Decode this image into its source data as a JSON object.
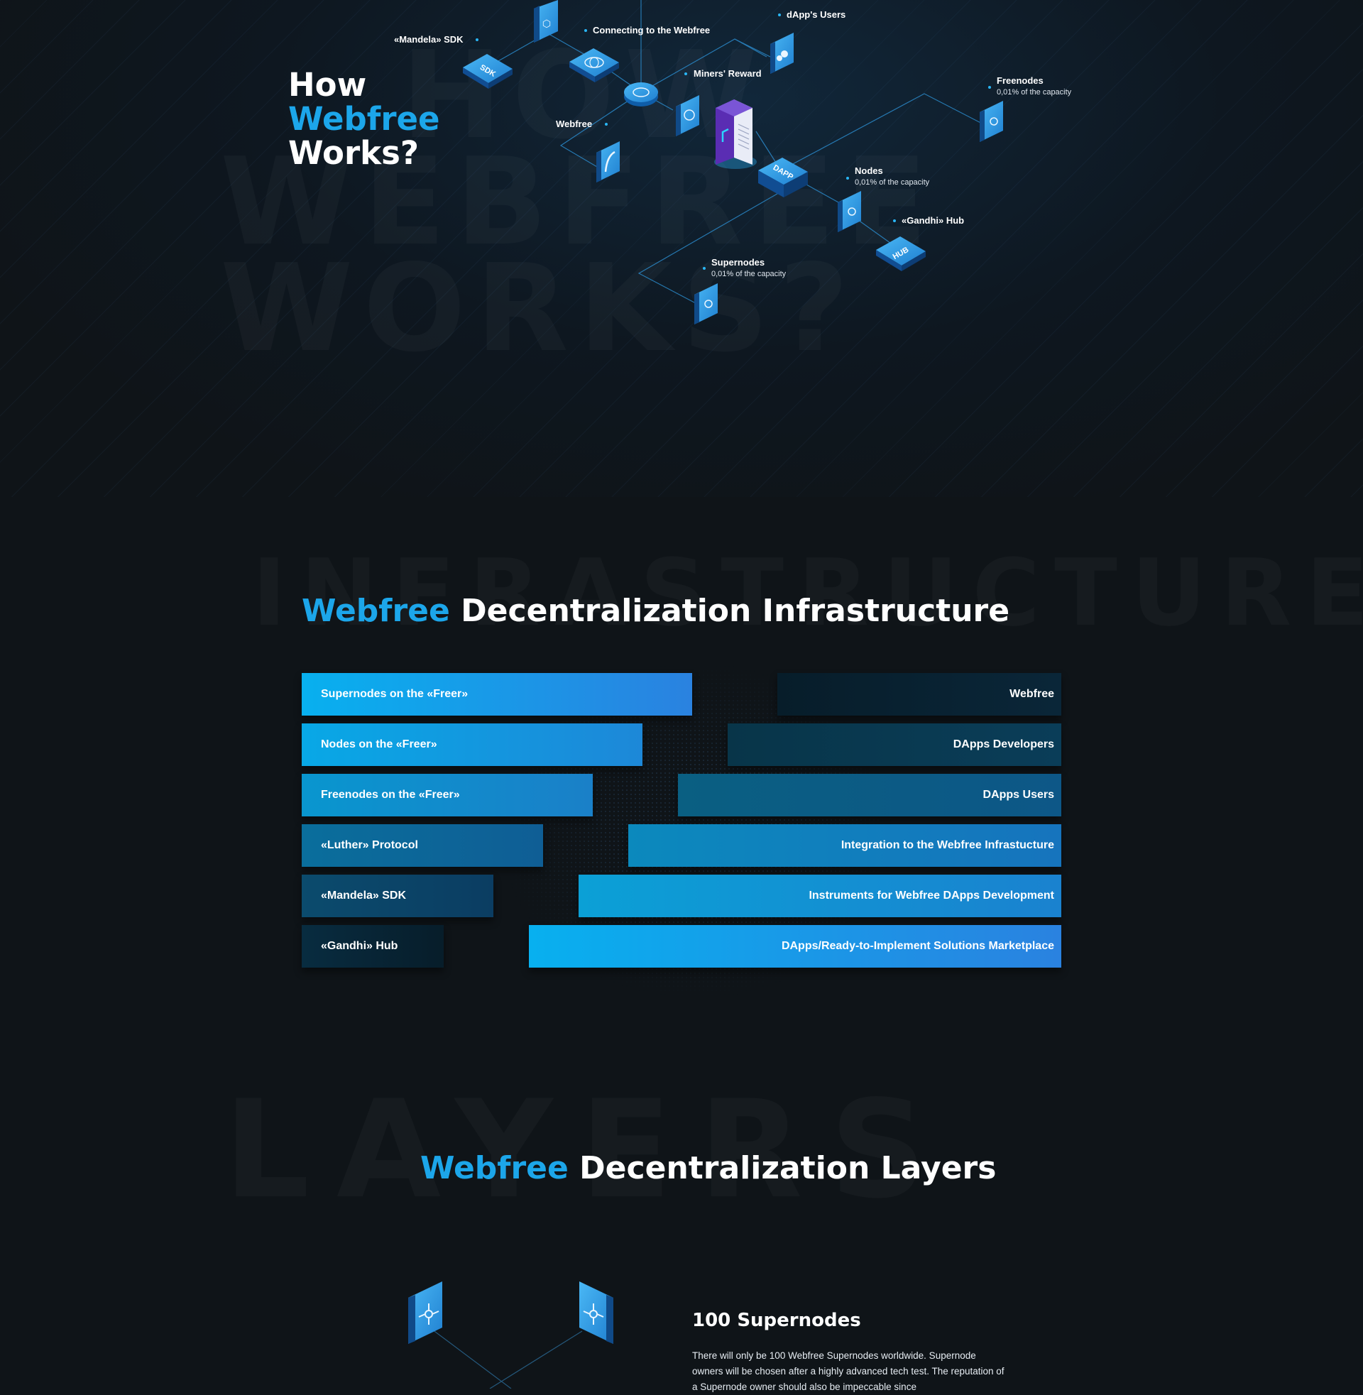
{
  "how": {
    "title_line1": "How",
    "title_accent": "Webfree",
    "title_line3": "Works?",
    "ghost_line1": "HOW",
    "ghost_line2": "WEBFREE",
    "ghost_line3": "WORKS?"
  },
  "diagram": {
    "labels": {
      "mandela_sdk": "«Mandela» SDK",
      "connecting": "Connecting to the Webfree",
      "dapp_users": "dApp's Users",
      "miners_reward": "Miners' Reward",
      "webfree": "Webfree",
      "freenodes": "Freenodes",
      "freenodes_sub": "0,01% of the capacity",
      "nodes": "Nodes",
      "nodes_sub": "0,01% of the capacity",
      "gandhi_hub": "«Gandhi» Hub",
      "supernodes": "Supernodes",
      "supernodes_sub": "0,01% of the capacity"
    },
    "tile_texts": {
      "sdk": "SDK",
      "dapp": "DAPP",
      "hub": "HUB"
    }
  },
  "infrastructure": {
    "ghost": "INFRASTRUCTURE",
    "title_accent": "Webfree",
    "title_rest": "Decentralization Infrastructure",
    "left_bars": [
      "Supernodes on the «Freer»",
      "Nodes on the «Freer»",
      "Freenodes on the «Freer»",
      "«Luther» Protocol",
      "«Mandela» SDK",
      "«Gandhi» Hub"
    ],
    "right_bars": [
      "Webfree",
      "DApps Developers",
      "DApps Users",
      "Integration to the Webfree Infrastucture",
      "Instruments for Webfree DApps Development",
      "DApps/Ready-to-Implement Solutions Marketplace"
    ]
  },
  "layers": {
    "ghost": "LAYERS",
    "title_accent": "Webfree",
    "title_rest": "Decentralization Layers",
    "card_title": "100 Supernodes",
    "card_text": "There will only be 100 Webfree Supernodes worldwide. Supernode owners will be chosen after a highly advanced tech test. The reputation of a Supernode owner should also be impeccable since"
  },
  "colors": {
    "accent": "#1ca6ea",
    "background": "#0f1418",
    "bar_bright": "#08b0ef",
    "bar_dark": "#071d2a"
  }
}
